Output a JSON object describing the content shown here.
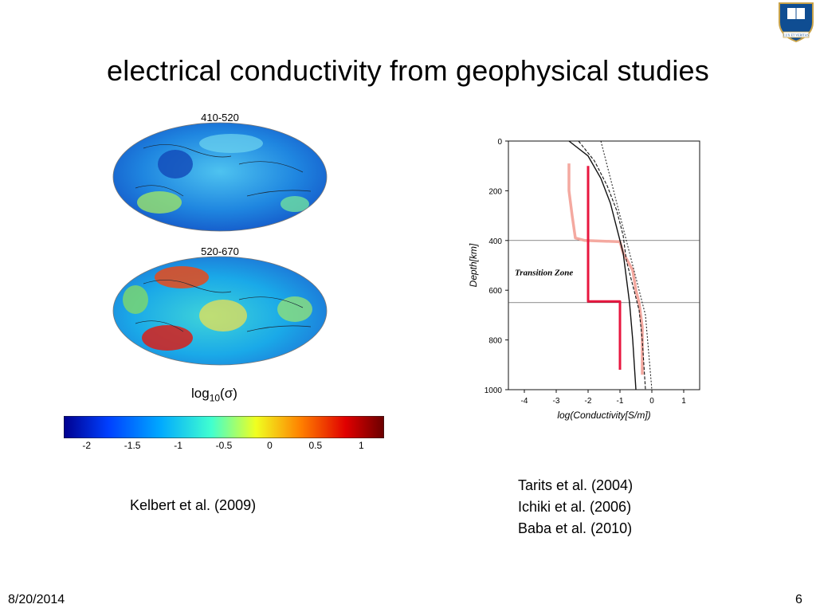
{
  "slide": {
    "title": "electrical conductivity from geophysical studies",
    "date": "8/20/2014",
    "page_number": "6"
  },
  "logo": {
    "name": "yale-shield-icon",
    "text": "LUX ET VERITAS",
    "colors": {
      "shield": "#0f4d92",
      "border": "#c9a34a"
    }
  },
  "maps": {
    "top_label": "410-520",
    "bottom_label": "520-670"
  },
  "colorbar": {
    "title_base": "log",
    "title_sub": "10",
    "title_arg": "(σ)",
    "ticks": [
      "-2",
      "-1.5",
      "-1",
      "-0.5",
      "0",
      "0.5",
      "1"
    ],
    "range": [
      -2.25,
      1.25
    ]
  },
  "profile": {
    "y_label": "Depth[km]",
    "x_label": "log(Conductivity[S/m])",
    "annotation": "Transition Zone",
    "y_ticks": [
      "0",
      "200",
      "400",
      "600",
      "800",
      "1000"
    ],
    "x_ticks": [
      "-4",
      "-3",
      "-2",
      "-1",
      "0",
      "1"
    ],
    "colors": {
      "red": "#e8173f",
      "pink": "#f4a9a0"
    }
  },
  "chart_data": {
    "type": "line",
    "xlabel": "log(Conductivity[S/m])",
    "ylabel": "Depth[km]",
    "xlim": [
      -4.5,
      1.5
    ],
    "ylim": [
      1000,
      0
    ],
    "annotations": [
      "Transition Zone"
    ],
    "series": [
      {
        "x": [
          -2.6,
          -2.6,
          -2.5,
          -2.4,
          -2.1,
          -1.0,
          -0.9,
          -0.6,
          -0.5,
          -0.4,
          -0.3,
          -0.3,
          -0.3
        ],
        "y": [
          90,
          200,
          300,
          390,
          400,
          405,
          450,
          520,
          600,
          650,
          750,
          850,
          940
        ]
      },
      {
        "x": [
          -2.0,
          -2.0,
          -2.0,
          -2.0,
          -1.0,
          -1.0,
          -1.0
        ],
        "y": [
          100,
          400,
          640,
          645,
          645,
          800,
          920
        ]
      },
      {
        "x": [
          -2.6,
          -2.0,
          -1.6,
          -1.3,
          -1.1,
          -0.9,
          -0.8,
          -0.7,
          -0.6,
          -0.5
        ],
        "y": [
          0,
          60,
          150,
          250,
          350,
          450,
          550,
          650,
          800,
          1000
        ]
      },
      {
        "x": [
          -2.3,
          -1.8,
          -1.4,
          -1.1,
          -0.9,
          -0.8,
          -0.6,
          -0.4,
          -0.3,
          -0.2
        ],
        "y": [
          0,
          80,
          180,
          280,
          380,
          480,
          580,
          680,
          800,
          1000
        ]
      },
      {
        "x": [
          -1.6,
          -1.4,
          -1.2,
          -1.0,
          -0.8,
          -0.6,
          -0.4,
          -0.2,
          -0.1,
          0.0
        ],
        "y": [
          0,
          100,
          200,
          300,
          400,
          500,
          600,
          700,
          850,
          1000
        ]
      }
    ]
  }
}
